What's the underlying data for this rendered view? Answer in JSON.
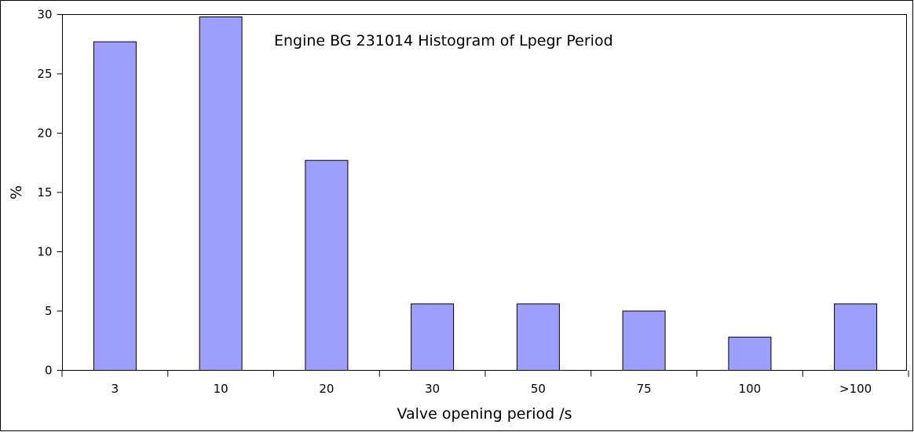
{
  "chart_data": {
    "type": "bar",
    "title": "Engine BG 231014  Histogram of Lpegr Period",
    "xlabel": "Valve opening period /s",
    "ylabel": "%",
    "categories": [
      "3",
      "10",
      "20",
      "30",
      "50",
      "75",
      "100",
      ">100"
    ],
    "values": [
      27.7,
      29.8,
      17.7,
      5.6,
      5.6,
      5.0,
      2.8,
      5.6
    ],
    "ylim": [
      0,
      30
    ],
    "yticks": [
      "0",
      "5",
      "10",
      "15",
      "20",
      "25",
      "30"
    ],
    "grid": false,
    "legend": "none",
    "bar_color": "#9e9eff",
    "bar_edge_color": "#000000"
  }
}
